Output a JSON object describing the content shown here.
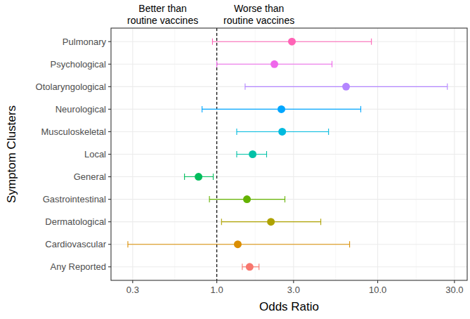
{
  "chart_data": {
    "type": "forest",
    "orientation": "horizontal",
    "log": "x",
    "grid": true,
    "x_label": "Odds Ratio",
    "y_label": "Symptom Clusters",
    "annotations": [
      {
        "lines": [
          "Better than",
          "routine vaccines"
        ],
        "side": "left"
      },
      {
        "lines": [
          "Worse than",
          "routine vaccines"
        ],
        "side": "right"
      }
    ],
    "reference_line": 1,
    "categories": [
      "Pulmonary",
      "Psychological",
      "Otolaryngological",
      "Neurological",
      "Musculoskeletal",
      "Local",
      "General",
      "Gastrointestinal",
      "Dermatological",
      "Cardiovascular",
      "Any Reported"
    ],
    "values": [
      2.93,
      2.28,
      6.36,
      2.52,
      2.55,
      1.67,
      0.77,
      1.54,
      2.17,
      1.35,
      1.6
    ],
    "ci_lower": [
      0.94,
      1.0,
      1.5,
      0.81,
      1.33,
      1.33,
      0.63,
      0.9,
      1.07,
      0.28,
      1.44
    ],
    "ci_upper": [
      9.14,
      5.2,
      27.1,
      7.85,
      4.95,
      2.04,
      0.95,
      2.65,
      4.43,
      6.69,
      1.83
    ],
    "colors": [
      "#FF63B6",
      "#EF67EB",
      "#B385FF",
      "#00A6FF",
      "#00BADE",
      "#00C1A7",
      "#00BD5C",
      "#64B200",
      "#AEA200",
      "#DB8E00",
      "#F8766D"
    ],
    "xlim": [
      0.22,
      36
    ],
    "xticks": [
      0.3,
      {
        "value": 1,
        "label": "1.0"
      },
      {
        "value": 3,
        "label": "3.0"
      },
      {
        "value": 10,
        "label": "10.0"
      },
      {
        "value": 30,
        "label": "30.0"
      }
    ]
  }
}
